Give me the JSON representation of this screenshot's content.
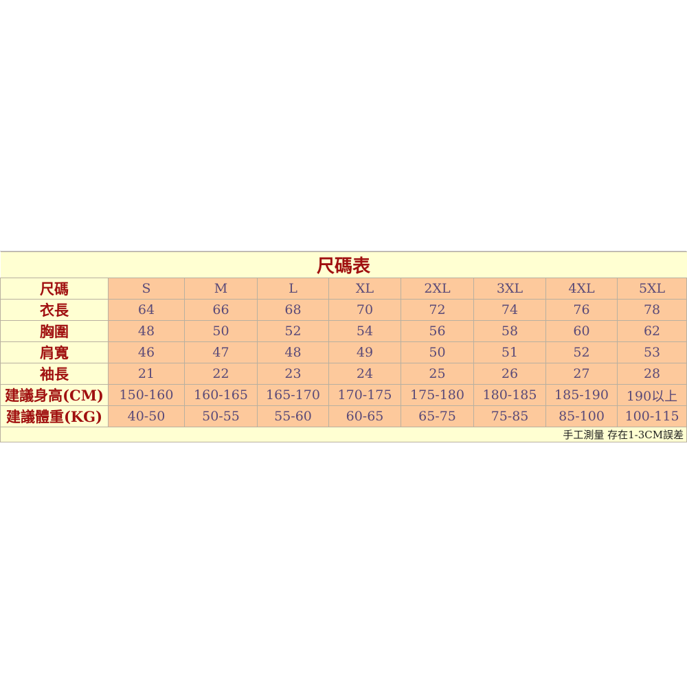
{
  "title": "尺碼表",
  "colors": {
    "label_text": "#a01010",
    "value_text": "#5a4a78",
    "label_bg": "#ffffd2",
    "value_bg": "#fdc99c"
  },
  "rows": [
    {
      "label": "尺碼",
      "values": [
        "S",
        "M",
        "L",
        "XL",
        "2XL",
        "3XL",
        "4XL",
        "5XL"
      ]
    },
    {
      "label": "衣長",
      "values": [
        "64",
        "66",
        "68",
        "70",
        "72",
        "74",
        "76",
        "78"
      ]
    },
    {
      "label": "胸圍",
      "values": [
        "48",
        "50",
        "52",
        "54",
        "56",
        "58",
        "60",
        "62"
      ]
    },
    {
      "label": "肩寬",
      "values": [
        "46",
        "47",
        "48",
        "49",
        "50",
        "51",
        "52",
        "53"
      ]
    },
    {
      "label": "袖長",
      "values": [
        "21",
        "22",
        "23",
        "24",
        "25",
        "26",
        "27",
        "28"
      ]
    },
    {
      "label": "建議身高(CM)",
      "values": [
        "150-160",
        "160-165",
        "165-170",
        "170-175",
        "175-180",
        "180-185",
        "185-190",
        "190以上"
      ]
    },
    {
      "label": "建議體重(KG)",
      "values": [
        "40-50",
        "50-55",
        "55-60",
        "60-65",
        "65-75",
        "75-85",
        "85-100",
        "100-115"
      ]
    }
  ],
  "footnote": "手工測量 存在1-3CM誤差"
}
